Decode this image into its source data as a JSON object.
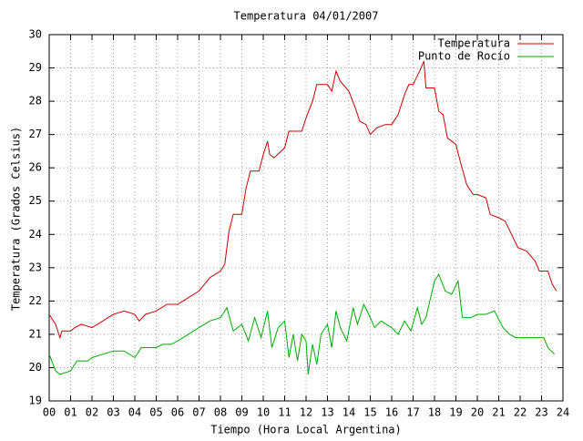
{
  "chart_data": {
    "type": "line",
    "title": "Temperatura 04/01/2007",
    "x_label": "Tiempo (Hora Local Argentina)",
    "y_label": "Temperatura (Grados Celsius)",
    "xlim": [
      0,
      24
    ],
    "ylim": [
      19,
      30
    ],
    "xticks": [
      {
        "value": 0,
        "label": "00"
      },
      {
        "value": 1,
        "label": "01"
      },
      {
        "value": 2,
        "label": "02"
      },
      {
        "value": 3,
        "label": "03"
      },
      {
        "value": 4,
        "label": "04"
      },
      {
        "value": 5,
        "label": "05"
      },
      {
        "value": 6,
        "label": "06"
      },
      {
        "value": 7,
        "label": "07"
      },
      {
        "value": 8,
        "label": "08"
      },
      {
        "value": 9,
        "label": "09"
      },
      10,
      11,
      12,
      13,
      14,
      15,
      16,
      17,
      18,
      19,
      20,
      21,
      22,
      23,
      24
    ],
    "yticks": [
      19,
      20,
      21,
      22,
      23,
      24,
      25,
      26,
      27,
      28,
      29,
      30
    ],
    "grid": true,
    "legend": "top-right",
    "series": [
      {
        "name": "Temperatura",
        "color": "#cc0000",
        "x": [
          0,
          0.3,
          0.5,
          0.6,
          1,
          1.2,
          1.5,
          2,
          2.5,
          3,
          3.5,
          4,
          4.2,
          4.5,
          5,
          5.5,
          6,
          6.5,
          7,
          7.5,
          8,
          8.2,
          8.4,
          8.6,
          9,
          9.2,
          9.4,
          9.8,
          10,
          10.2,
          10.3,
          10.5,
          11,
          11.2,
          11.5,
          11.8,
          12,
          12.3,
          12.5,
          13,
          13.2,
          13.4,
          13.6,
          14,
          14.3,
          14.5,
          14.8,
          15,
          15.3,
          15.7,
          16,
          16.3,
          16.6,
          16.8,
          17,
          17.3,
          17.5,
          17.6,
          18,
          18.2,
          18.4,
          18.6,
          19,
          19.2,
          19.5,
          19.8,
          20,
          20.4,
          20.6,
          21,
          21.3,
          21.6,
          21.9,
          22.3,
          22.7,
          22.9,
          23.3,
          23.5,
          23.7
        ],
        "values": [
          21.6,
          21.3,
          20.9,
          21.1,
          21.1,
          21.2,
          21.3,
          21.2,
          21.4,
          21.6,
          21.7,
          21.6,
          21.4,
          21.6,
          21.7,
          21.9,
          21.9,
          22.1,
          22.3,
          22.7,
          22.9,
          23.1,
          24.1,
          24.6,
          24.6,
          25.4,
          25.9,
          25.9,
          26.4,
          26.8,
          26.4,
          26.3,
          26.6,
          27.1,
          27.1,
          27.1,
          27.5,
          28.0,
          28.5,
          28.5,
          28.3,
          28.9,
          28.6,
          28.3,
          27.8,
          27.4,
          27.3,
          27.0,
          27.2,
          27.3,
          27.3,
          27.6,
          28.2,
          28.5,
          28.5,
          28.9,
          29.2,
          28.4,
          28.4,
          27.7,
          27.6,
          26.9,
          26.7,
          26.2,
          25.5,
          25.2,
          25.2,
          25.1,
          24.6,
          24.5,
          24.4,
          24.0,
          23.6,
          23.5,
          23.2,
          22.9,
          22.9,
          22.5,
          22.3
        ]
      },
      {
        "name": "Punto de Rocío",
        "color": "#00aa00",
        "x": [
          0,
          0.3,
          0.5,
          1,
          1.3,
          1.8,
          2,
          2.5,
          3,
          3.5,
          4,
          4.3,
          5,
          5.3,
          5.7,
          6,
          6.5,
          7,
          7.5,
          8,
          8.3,
          8.6,
          9,
          9.3,
          9.6,
          9.9,
          10.2,
          10.4,
          10.7,
          11,
          11.2,
          11.4,
          11.6,
          11.8,
          12,
          12.1,
          12.3,
          12.5,
          12.7,
          13,
          13.2,
          13.4,
          13.6,
          13.9,
          14.2,
          14.4,
          14.7,
          15,
          15.2,
          15.5,
          16,
          16.3,
          16.6,
          16.9,
          17.2,
          17.4,
          17.6,
          18,
          18.2,
          18.5,
          18.8,
          19.1,
          19.3,
          19.7,
          20,
          20.4,
          20.8,
          21.2,
          21.5,
          21.8,
          22.3,
          22.7,
          23.1,
          23.3,
          23.6
        ],
        "values": [
          20.4,
          19.9,
          19.8,
          19.9,
          20.2,
          20.2,
          20.3,
          20.4,
          20.5,
          20.5,
          20.3,
          20.6,
          20.6,
          20.7,
          20.7,
          20.8,
          21.0,
          21.2,
          21.4,
          21.5,
          21.8,
          21.1,
          21.3,
          20.8,
          21.5,
          20.9,
          21.7,
          20.6,
          21.2,
          21.4,
          20.3,
          21.0,
          20.2,
          21.0,
          20.8,
          19.8,
          20.7,
          20.1,
          21.0,
          21.3,
          20.6,
          21.7,
          21.2,
          20.8,
          21.8,
          21.3,
          21.9,
          21.5,
          21.2,
          21.4,
          21.2,
          21.0,
          21.4,
          21.1,
          21.8,
          21.3,
          21.5,
          22.6,
          22.8,
          22.3,
          22.2,
          22.6,
          21.5,
          21.5,
          21.6,
          21.6,
          21.7,
          21.2,
          21.0,
          20.9,
          20.9,
          20.9,
          20.9,
          20.6,
          20.4
        ]
      }
    ]
  }
}
